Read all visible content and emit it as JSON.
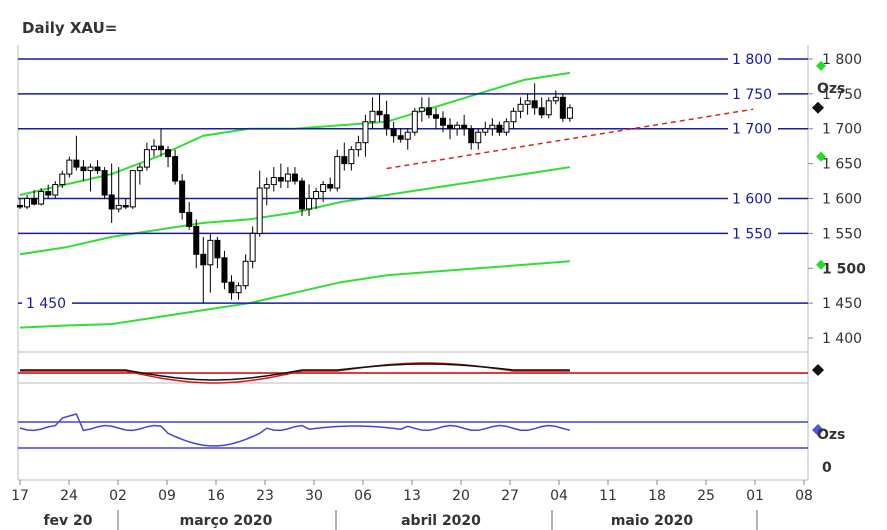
{
  "chart_data": {
    "type": "candlestick",
    "title": "Daily XAU=",
    "unit_label": "Ozs",
    "ylim": [
      1380,
      1820
    ],
    "y_ticks": [
      "1 400",
      "1 450",
      "1 500",
      "1 550",
      "1 600",
      "1 650",
      "1 700",
      "1 750",
      "1 800"
    ],
    "y_tick_values": [
      1400,
      1450,
      1500,
      1550,
      1600,
      1650,
      1700,
      1750,
      1800
    ],
    "bold_tick": "1 500",
    "x_day_ticks": [
      "17",
      "24",
      "02",
      "09",
      "16",
      "23",
      "30",
      "06",
      "13",
      "20",
      "27",
      "04",
      "11",
      "18",
      "25",
      "01",
      "08"
    ],
    "x_month_labels": [
      "fev 20",
      "março 2020",
      "abril 2020",
      "maio 2020"
    ],
    "horizontal_levels": [
      {
        "value": 1800,
        "label": "1 800",
        "label_side": "right"
      },
      {
        "value": 1750,
        "label": "1 750",
        "label_side": "right"
      },
      {
        "value": 1700,
        "label": "1 700",
        "label_side": "right"
      },
      {
        "value": 1600,
        "label": "1 600",
        "label_side": "right"
      },
      {
        "value": 1550,
        "label": "1 550",
        "label_side": "right"
      },
      {
        "value": 1450,
        "label": "1 450",
        "label_side": "left"
      }
    ],
    "trendline": {
      "from": {
        "index": 52,
        "value": 1643
      },
      "to": {
        "index": 104,
        "value": 1728
      },
      "style": "dashed",
      "color": "#dd2222"
    },
    "candles": [
      {
        "o": 1590,
        "h": 1600,
        "l": 1585,
        "c": 1588
      },
      {
        "o": 1588,
        "h": 1605,
        "l": 1585,
        "c": 1600
      },
      {
        "o": 1600,
        "h": 1612,
        "l": 1590,
        "c": 1592
      },
      {
        "o": 1592,
        "h": 1615,
        "l": 1590,
        "c": 1610
      },
      {
        "o": 1610,
        "h": 1620,
        "l": 1600,
        "c": 1605
      },
      {
        "o": 1605,
        "h": 1625,
        "l": 1600,
        "c": 1620
      },
      {
        "o": 1620,
        "h": 1640,
        "l": 1615,
        "c": 1635
      },
      {
        "o": 1635,
        "h": 1660,
        "l": 1630,
        "c": 1655
      },
      {
        "o": 1655,
        "h": 1690,
        "l": 1640,
        "c": 1645
      },
      {
        "o": 1645,
        "h": 1655,
        "l": 1625,
        "c": 1640
      },
      {
        "o": 1640,
        "h": 1650,
        "l": 1610,
        "c": 1645
      },
      {
        "o": 1645,
        "h": 1655,
        "l": 1635,
        "c": 1640
      },
      {
        "o": 1640,
        "h": 1645,
        "l": 1600,
        "c": 1605
      },
      {
        "o": 1605,
        "h": 1650,
        "l": 1565,
        "c": 1585
      },
      {
        "o": 1585,
        "h": 1645,
        "l": 1580,
        "c": 1590
      },
      {
        "o": 1590,
        "h": 1600,
        "l": 1585,
        "c": 1588
      },
      {
        "o": 1588,
        "h": 1640,
        "l": 1585,
        "c": 1640
      },
      {
        "o": 1640,
        "h": 1650,
        "l": 1620,
        "c": 1645
      },
      {
        "o": 1645,
        "h": 1680,
        "l": 1640,
        "c": 1670
      },
      {
        "o": 1670,
        "h": 1685,
        "l": 1660,
        "c": 1675
      },
      {
        "o": 1675,
        "h": 1700,
        "l": 1660,
        "c": 1670
      },
      {
        "o": 1670,
        "h": 1675,
        "l": 1645,
        "c": 1660
      },
      {
        "o": 1660,
        "h": 1670,
        "l": 1620,
        "c": 1625
      },
      {
        "o": 1625,
        "h": 1635,
        "l": 1570,
        "c": 1580
      },
      {
        "o": 1580,
        "h": 1595,
        "l": 1555,
        "c": 1560
      },
      {
        "o": 1560,
        "h": 1570,
        "l": 1500,
        "c": 1520
      },
      {
        "o": 1520,
        "h": 1545,
        "l": 1450,
        "c": 1505
      },
      {
        "o": 1505,
        "h": 1550,
        "l": 1465,
        "c": 1540
      },
      {
        "o": 1540,
        "h": 1545,
        "l": 1500,
        "c": 1515
      },
      {
        "o": 1515,
        "h": 1525,
        "l": 1470,
        "c": 1480
      },
      {
        "o": 1480,
        "h": 1490,
        "l": 1455,
        "c": 1465
      },
      {
        "o": 1465,
        "h": 1480,
        "l": 1455,
        "c": 1475
      },
      {
        "o": 1475,
        "h": 1520,
        "l": 1470,
        "c": 1510
      },
      {
        "o": 1510,
        "h": 1560,
        "l": 1500,
        "c": 1550
      },
      {
        "o": 1550,
        "h": 1640,
        "l": 1545,
        "c": 1615
      },
      {
        "o": 1615,
        "h": 1630,
        "l": 1590,
        "c": 1620
      },
      {
        "o": 1620,
        "h": 1645,
        "l": 1610,
        "c": 1630
      },
      {
        "o": 1630,
        "h": 1650,
        "l": 1615,
        "c": 1625
      },
      {
        "o": 1625,
        "h": 1645,
        "l": 1615,
        "c": 1635
      },
      {
        "o": 1635,
        "h": 1645,
        "l": 1620,
        "c": 1625
      },
      {
        "o": 1625,
        "h": 1630,
        "l": 1575,
        "c": 1585
      },
      {
        "o": 1585,
        "h": 1620,
        "l": 1575,
        "c": 1600
      },
      {
        "o": 1600,
        "h": 1615,
        "l": 1585,
        "c": 1610
      },
      {
        "o": 1610,
        "h": 1625,
        "l": 1595,
        "c": 1620
      },
      {
        "o": 1620,
        "h": 1630,
        "l": 1610,
        "c": 1615
      },
      {
        "o": 1615,
        "h": 1670,
        "l": 1610,
        "c": 1660
      },
      {
        "o": 1660,
        "h": 1680,
        "l": 1640,
        "c": 1650
      },
      {
        "o": 1650,
        "h": 1675,
        "l": 1640,
        "c": 1670
      },
      {
        "o": 1670,
        "h": 1690,
        "l": 1660,
        "c": 1680
      },
      {
        "o": 1680,
        "h": 1720,
        "l": 1660,
        "c": 1710
      },
      {
        "o": 1710,
        "h": 1745,
        "l": 1700,
        "c": 1725
      },
      {
        "o": 1725,
        "h": 1750,
        "l": 1710,
        "c": 1720
      },
      {
        "o": 1720,
        "h": 1740,
        "l": 1690,
        "c": 1700
      },
      {
        "o": 1700,
        "h": 1710,
        "l": 1680,
        "c": 1690
      },
      {
        "o": 1690,
        "h": 1700,
        "l": 1680,
        "c": 1685
      },
      {
        "o": 1685,
        "h": 1700,
        "l": 1670,
        "c": 1695
      },
      {
        "o": 1695,
        "h": 1730,
        "l": 1690,
        "c": 1725
      },
      {
        "o": 1725,
        "h": 1745,
        "l": 1710,
        "c": 1730
      },
      {
        "o": 1730,
        "h": 1745,
        "l": 1715,
        "c": 1720
      },
      {
        "o": 1720,
        "h": 1730,
        "l": 1700,
        "c": 1715
      },
      {
        "o": 1715,
        "h": 1725,
        "l": 1695,
        "c": 1705
      },
      {
        "o": 1705,
        "h": 1715,
        "l": 1685,
        "c": 1700
      },
      {
        "o": 1700,
        "h": 1710,
        "l": 1690,
        "c": 1705
      },
      {
        "o": 1705,
        "h": 1720,
        "l": 1690,
        "c": 1700
      },
      {
        "o": 1700,
        "h": 1705,
        "l": 1670,
        "c": 1680
      },
      {
        "o": 1680,
        "h": 1700,
        "l": 1670,
        "c": 1695
      },
      {
        "o": 1695,
        "h": 1710,
        "l": 1690,
        "c": 1700
      },
      {
        "o": 1700,
        "h": 1715,
        "l": 1690,
        "c": 1705
      },
      {
        "o": 1705,
        "h": 1710,
        "l": 1690,
        "c": 1695
      },
      {
        "o": 1695,
        "h": 1715,
        "l": 1690,
        "c": 1710
      },
      {
        "o": 1710,
        "h": 1730,
        "l": 1700,
        "c": 1725
      },
      {
        "o": 1725,
        "h": 1745,
        "l": 1715,
        "c": 1735
      },
      {
        "o": 1735,
        "h": 1750,
        "l": 1720,
        "c": 1740
      },
      {
        "o": 1740,
        "h": 1765,
        "l": 1720,
        "c": 1730
      },
      {
        "o": 1730,
        "h": 1745,
        "l": 1715,
        "c": 1720
      },
      {
        "o": 1720,
        "h": 1745,
        "l": 1715,
        "c": 1740
      },
      {
        "o": 1740,
        "h": 1755,
        "l": 1735,
        "c": 1745
      },
      {
        "o": 1745,
        "h": 1750,
        "l": 1710,
        "c": 1715
      },
      {
        "o": 1715,
        "h": 1735,
        "l": 1710,
        "c": 1730
      }
    ],
    "envelope_upper": [
      1605,
      1620,
      1635,
      1660,
      1690,
      1700,
      1700,
      1705,
      1710,
      1730,
      1750,
      1770,
      1780
    ],
    "envelope_mid": [
      1520,
      1530,
      1545,
      1555,
      1565,
      1570,
      1580,
      1595,
      1605,
      1615,
      1625,
      1635,
      1645
    ],
    "envelope_lower": [
      1415,
      1418,
      1420,
      1430,
      1440,
      1450,
      1465,
      1480,
      1490,
      1495,
      1500,
      1505,
      1510
    ],
    "lower_panel_1": {
      "lines": [
        "black",
        "red"
      ],
      "baseline_color": "#cc0000"
    },
    "lower_panel_2": {
      "unit_label": "Ozs",
      "tick": "0",
      "line_color": "#4444dd"
    }
  }
}
